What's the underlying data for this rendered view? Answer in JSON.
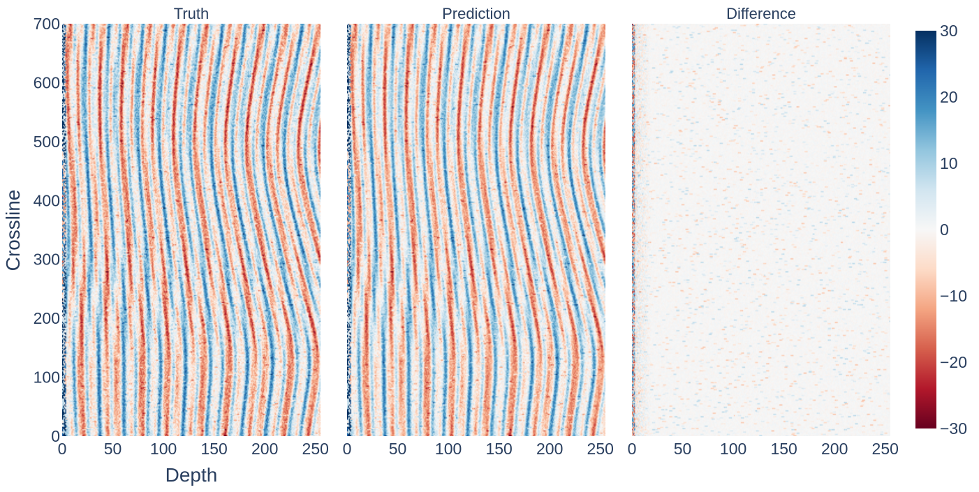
{
  "chart_data": {
    "type": "heatmap",
    "colorscale": "RdBu",
    "colorscale_stops": [
      "#67001f",
      "#b2182b",
      "#d6604d",
      "#f4a582",
      "#fddbc7",
      "#f7f7f7",
      "#d1e5f0",
      "#92c5de",
      "#4393c3",
      "#2166ac",
      "#053061"
    ],
    "zlim": [
      -30,
      30
    ],
    "colorbar_ticks": [
      30,
      20,
      10,
      0,
      -10,
      -20,
      -30
    ],
    "colorbar_tick_labels": [
      "30",
      "20",
      "10",
      "0",
      "−10",
      "−20",
      "−30"
    ],
    "x_range": [
      0,
      255
    ],
    "y_range": [
      0,
      700
    ],
    "xlabel": "Depth",
    "ylabel": "Crossline",
    "x_ticks": [
      0,
      50,
      100,
      150,
      200,
      250
    ],
    "y_ticks": [
      0,
      100,
      200,
      300,
      400,
      500,
      600,
      700
    ],
    "x_tick_labels": [
      "0",
      "50",
      "100",
      "150",
      "200",
      "250"
    ],
    "y_tick_labels": [
      "0",
      "100",
      "200",
      "300",
      "400",
      "500",
      "600",
      "700"
    ],
    "panels": [
      {
        "title": "Truth",
        "amplitude": 1.0,
        "noise": 0.18
      },
      {
        "title": "Prediction",
        "amplitude": 0.95,
        "noise": 0.14
      },
      {
        "title": "Difference",
        "amplitude": 0.18,
        "noise": 0.35
      }
    ]
  }
}
